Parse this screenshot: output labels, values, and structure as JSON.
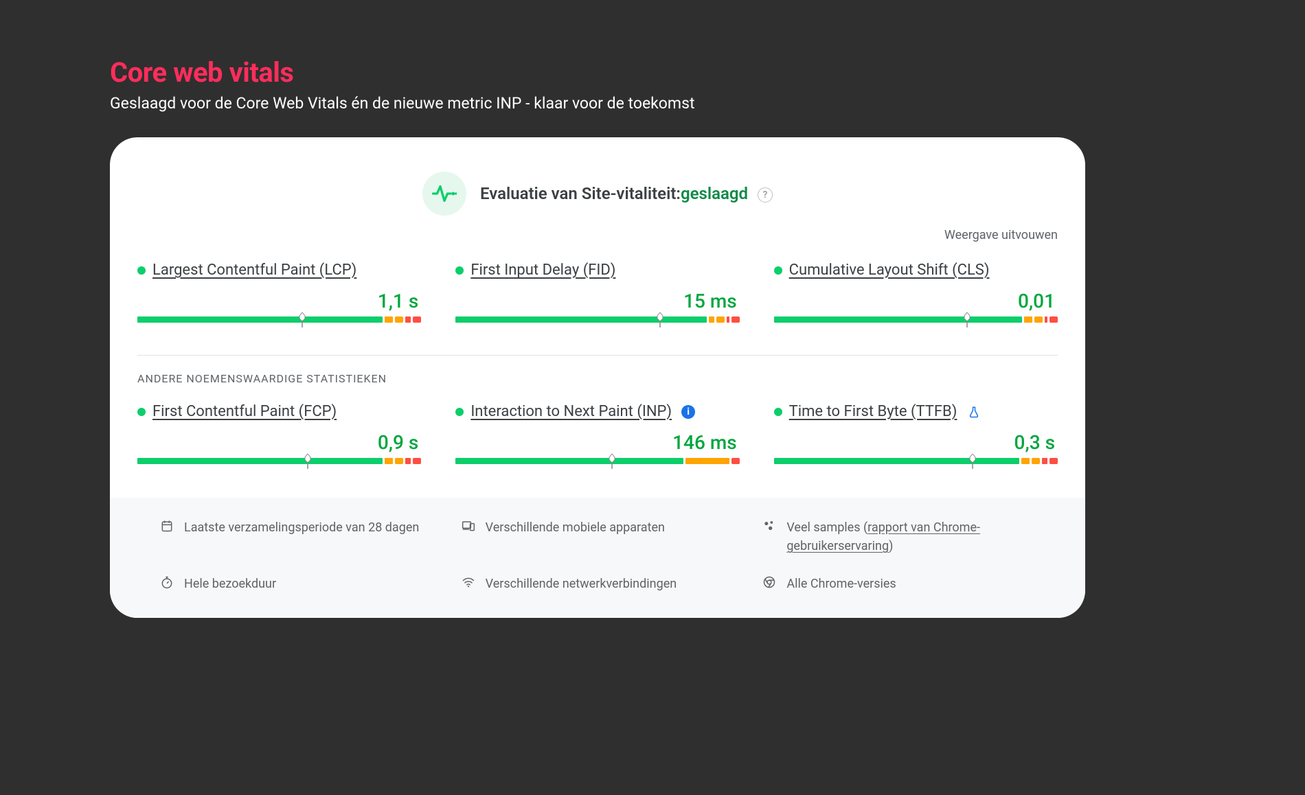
{
  "header": {
    "title": "Core web vitals",
    "subtitle": "Geslaagd voor de Core Web Vitals én de nieuwe metric INP - klaar voor de toekomst"
  },
  "card": {
    "evaluation_label": "Evaluatie van Site-vitaliteit:",
    "evaluation_result": "geslaagd",
    "expand_label": "Weergave uitvouwen",
    "section_other": "ANDERE NOEMENSWAARDIGE STATISTIEKEN",
    "colors": {
      "good": "#0cce6b",
      "warn": "#ffa400",
      "bad": "#ff4e42",
      "value_text": "#00a63e"
    },
    "metrics_primary": [
      {
        "id": "lcp",
        "name": "Largest Contentful Paint (LCP)",
        "value": "1,1 s",
        "status": "good",
        "marker_pct": 58,
        "segments": {
          "green": 88,
          "orange_thin": 3,
          "orange_block": true,
          "red_thin": 2,
          "red_block": true
        }
      },
      {
        "id": "fid",
        "name": "First Input Delay (FID)",
        "value": "15 ms",
        "status": "good",
        "marker_pct": 72,
        "segments": {
          "green": 92,
          "orange_thin": 2,
          "orange_block": true,
          "red_thin": 1,
          "red_block": true
        }
      },
      {
        "id": "cls",
        "name": "Cumulative Layout Shift (CLS)",
        "value": "0,01",
        "status": "good",
        "marker_pct": 68,
        "segments": {
          "green": 90,
          "orange_thin": 3,
          "orange_block": true,
          "red_thin": 1,
          "red_block": true
        }
      }
    ],
    "metrics_secondary": [
      {
        "id": "fcp",
        "name": "First Contentful Paint (FCP)",
        "value": "0,9 s",
        "status": "good",
        "marker_pct": 60,
        "segments": {
          "green": 88,
          "orange_thin": 3,
          "orange_block": true,
          "red_thin": 2,
          "red_block": true
        }
      },
      {
        "id": "inp",
        "name": "Interaction to Next Paint (INP)",
        "value": "146 ms",
        "status": "good",
        "info": true,
        "marker_pct": 55,
        "segments": {
          "green": 78,
          "orange_thin": 15,
          "orange_block": false,
          "red_thin": 0,
          "red_block": true
        }
      },
      {
        "id": "ttfb",
        "name": "Time to First Byte (TTFB)",
        "value": "0,3 s",
        "status": "good",
        "experimental": true,
        "marker_pct": 70,
        "segments": {
          "green": 88,
          "orange_thin": 3,
          "orange_block": true,
          "red_thin": 2,
          "red_block": true
        }
      }
    ],
    "footer": {
      "period": "Laatste verzamelingsperiode van 28 dagen",
      "devices": "Verschillende mobiele apparaten",
      "samples_prefix": "Veel samples (",
      "samples_link": "rapport van Chrome-gebruikerservaring",
      "samples_suffix": ")",
      "duration": "Hele bezoekduur",
      "networks": "Verschillende netwerkverbindingen",
      "versions": "Alle Chrome-versies"
    }
  }
}
